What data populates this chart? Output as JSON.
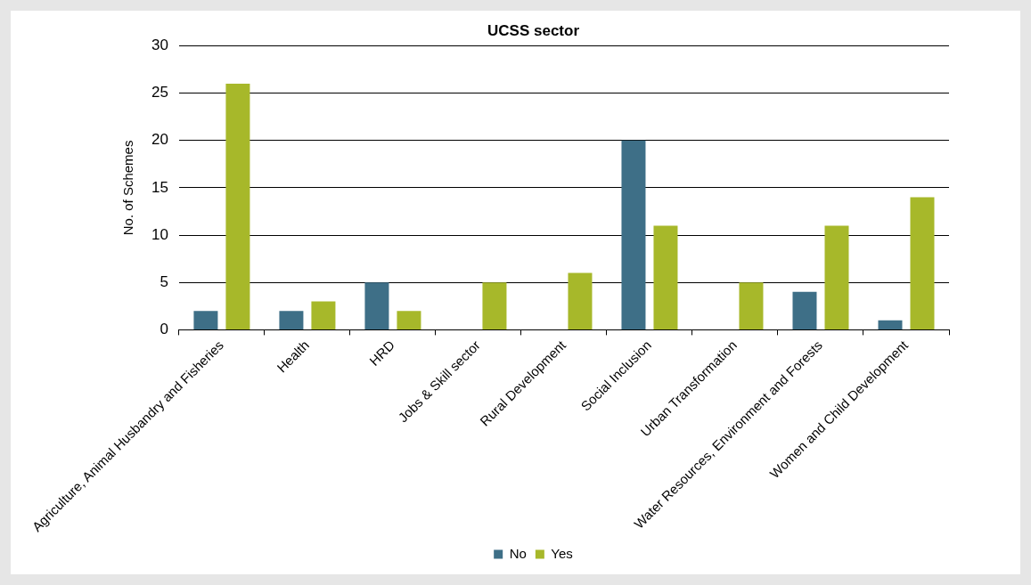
{
  "chart_data": {
    "type": "bar",
    "title": "UCSS sector",
    "ylabel": "No. of Schemes",
    "categories": [
      "Agriculture, Animal Husbandry and Fisheries",
      "Health",
      "HRD",
      "Jobs & Skill sector",
      "Rural Development",
      "Social Inclusion",
      "Urban Transformation",
      "Water Resources, Environment and Forests",
      "Women and Child Development"
    ],
    "series": [
      {
        "name": "No",
        "color": "#3e6f87",
        "values": [
          2,
          2,
          5,
          0,
          0,
          20,
          0,
          4,
          1
        ]
      },
      {
        "name": "Yes",
        "color": "#a7b82a",
        "values": [
          26,
          3,
          2,
          5,
          6,
          11,
          5,
          11,
          14
        ]
      }
    ],
    "ylim": [
      0,
      30
    ],
    "yticks": [
      0,
      5,
      10,
      15,
      20,
      25,
      30
    ],
    "grid": "y",
    "legend": "bottom"
  }
}
